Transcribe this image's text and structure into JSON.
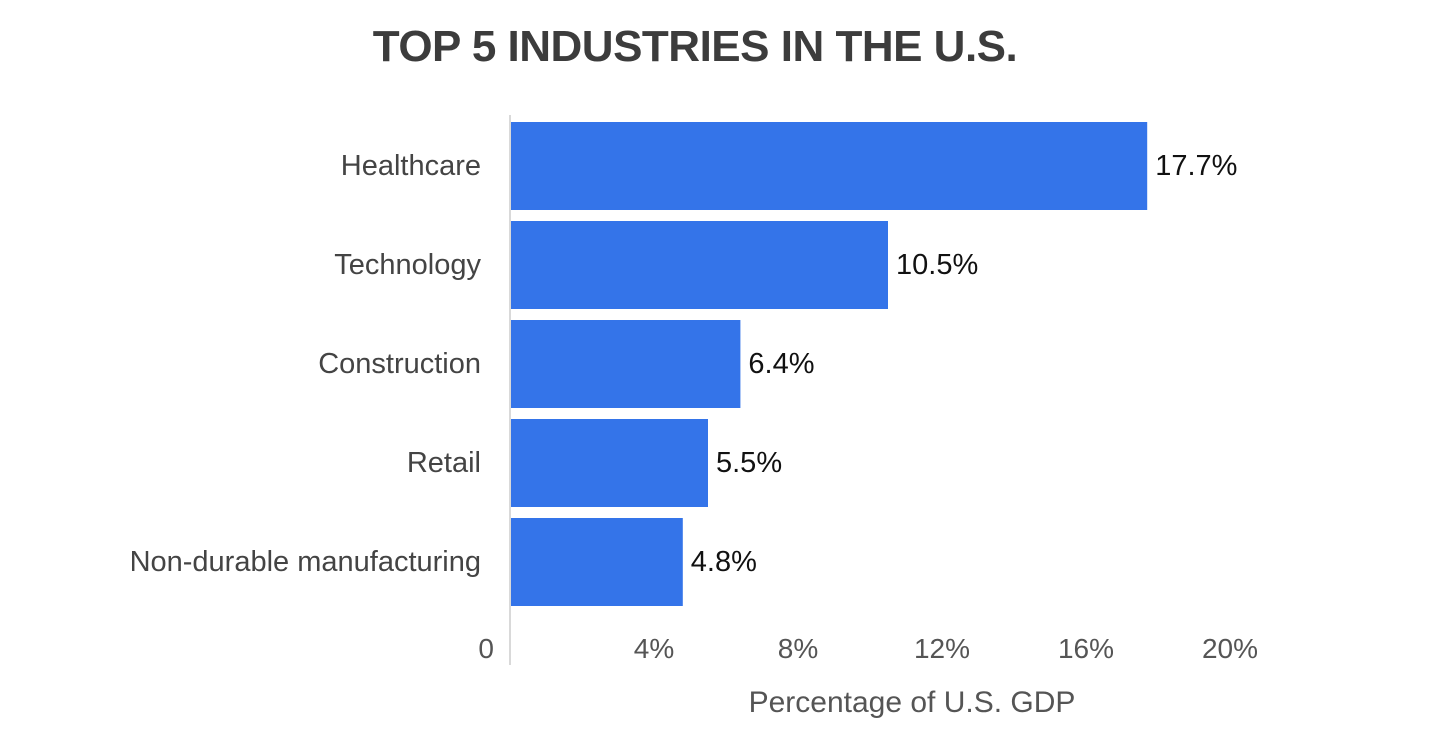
{
  "chart_data": {
    "type": "bar",
    "orientation": "horizontal",
    "title": "TOP 5 INDUSTRIES IN THE U.S.",
    "xlabel": "Percentage of U.S. GDP",
    "ylabel": "",
    "categories": [
      "Healthcare",
      "Technology",
      "Construction",
      "Retail",
      "Non-durable manufacturing"
    ],
    "values": [
      17.7,
      10.5,
      6.4,
      5.5,
      4.8
    ],
    "value_labels": [
      "17.7%",
      "10.5%",
      "6.4%",
      "5.5%",
      "4.8%"
    ],
    "xlim": [
      0,
      20
    ],
    "x_ticks": [
      0,
      4,
      8,
      12,
      16,
      20
    ],
    "x_tick_labels": [
      "0",
      "4%",
      "8%",
      "12%",
      "16%",
      "20%"
    ],
    "grid": false,
    "bar_color": "#3474e9"
  }
}
